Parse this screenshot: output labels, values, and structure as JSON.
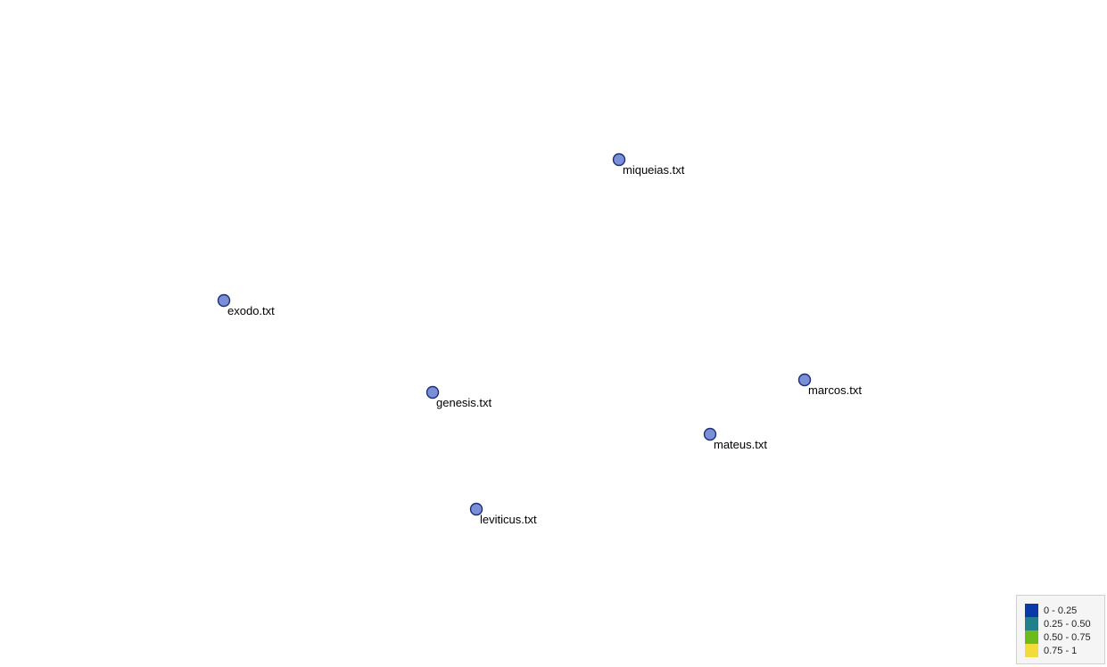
{
  "diagram": {
    "nodes": [
      {
        "label": "miqueias.txt",
        "fill": "#7b8fd8",
        "stroke": "#1a2f7a"
      },
      {
        "label": "exodo.txt",
        "fill": "#7b8fd8",
        "stroke": "#1a2f7a"
      },
      {
        "label": "genesis.txt",
        "fill": "#7b8fd8",
        "stroke": "#1a2f7a"
      },
      {
        "label": "marcos.txt",
        "fill": "#7b8fd8",
        "stroke": "#1a2f7a"
      },
      {
        "label": "mateus.txt",
        "fill": "#7b8fd8",
        "stroke": "#1a2f7a"
      },
      {
        "label": "leviticus.txt",
        "fill": "#7b8fd8",
        "stroke": "#1a2f7a"
      }
    ]
  },
  "legend": {
    "items": [
      {
        "label": "0 - 0.25",
        "color": "#0a3aa8"
      },
      {
        "label": "0.25 - 0.50",
        "color": "#21808c"
      },
      {
        "label": "0.50 - 0.75",
        "color": "#6cbb1a"
      },
      {
        "label": "0.75 - 1",
        "color": "#f3dc3a"
      }
    ]
  }
}
